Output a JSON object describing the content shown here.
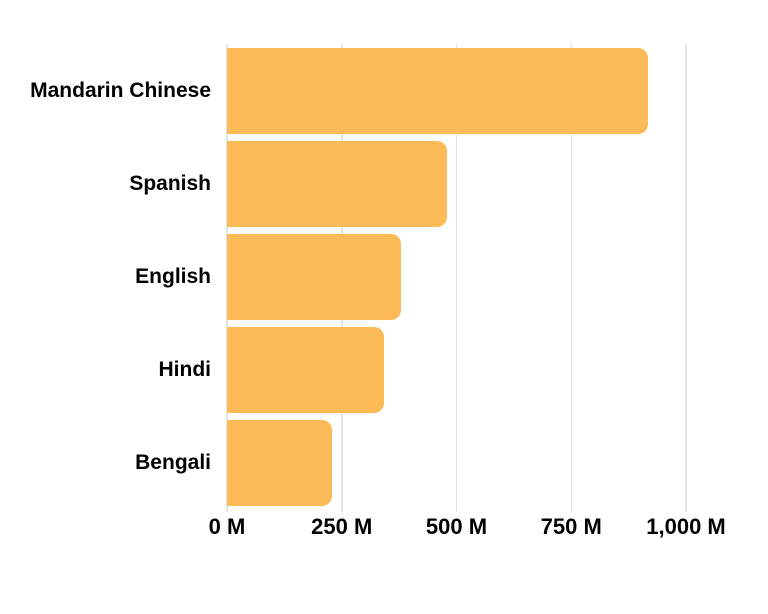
{
  "chart_data": {
    "type": "bar",
    "orientation": "horizontal",
    "categories": [
      "Mandarin Chinese",
      "Spanish",
      "English",
      "Hindi",
      "Bengali"
    ],
    "values": [
      918,
      480,
      379,
      341,
      228
    ],
    "unit": "M",
    "xlim": [
      0,
      1118
    ],
    "x_ticks": [
      {
        "value": 0,
        "label": "0 M"
      },
      {
        "value": 250,
        "label": "250 M"
      },
      {
        "value": 500,
        "label": "500 M"
      },
      {
        "value": 750,
        "label": "750 M"
      },
      {
        "value": 1000,
        "label": "1,000 M"
      }
    ],
    "grid": "vertical-gridlines",
    "legend": "none",
    "colors": {
      "bar": "#fdbb57",
      "gridline": "#e4e4e4",
      "text": "#000000",
      "background": "#ffffff"
    }
  }
}
